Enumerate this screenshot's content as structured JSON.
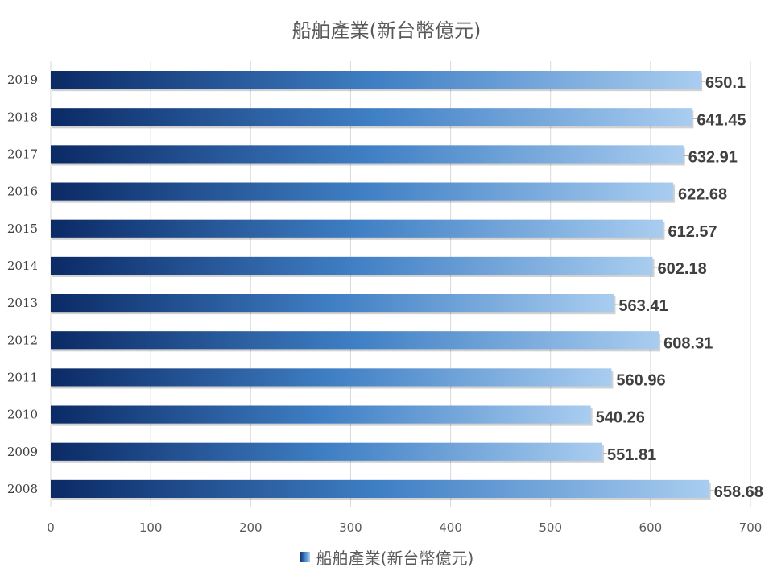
{
  "chart_data": {
    "type": "bar",
    "orientation": "horizontal",
    "title": "船舶產業(新台幣億元)",
    "categories": [
      "2008",
      "2009",
      "2010",
      "2011",
      "2012",
      "2013",
      "2014",
      "2015",
      "2016",
      "2017",
      "2018",
      "2019"
    ],
    "series": [
      {
        "name": "船舶產業(新台幣億元)",
        "values": [
          658.68,
          551.81,
          540.26,
          560.96,
          608.31,
          563.41,
          602.18,
          612.57,
          622.68,
          632.91,
          641.45,
          650.1
        ]
      }
    ],
    "value_labels": [
      "658.68",
      "551.81",
      "540.26",
      "560.96",
      "608.31",
      "563.41",
      "602.18",
      "612.57",
      "622.68",
      "632.91",
      "641.45",
      "650.1"
    ],
    "xlim": [
      0,
      700
    ],
    "xticks": [
      0,
      100,
      200,
      300,
      400,
      500,
      600,
      700
    ],
    "grid": "vertical",
    "legend_position": "bottom",
    "colors": {
      "bar_start": "#0b2a66",
      "bar_mid": "#3f7fc4",
      "bar_end": "#a9cdf0",
      "text": "#595959",
      "label": "#404040",
      "grid": "#d9d9d9"
    }
  }
}
